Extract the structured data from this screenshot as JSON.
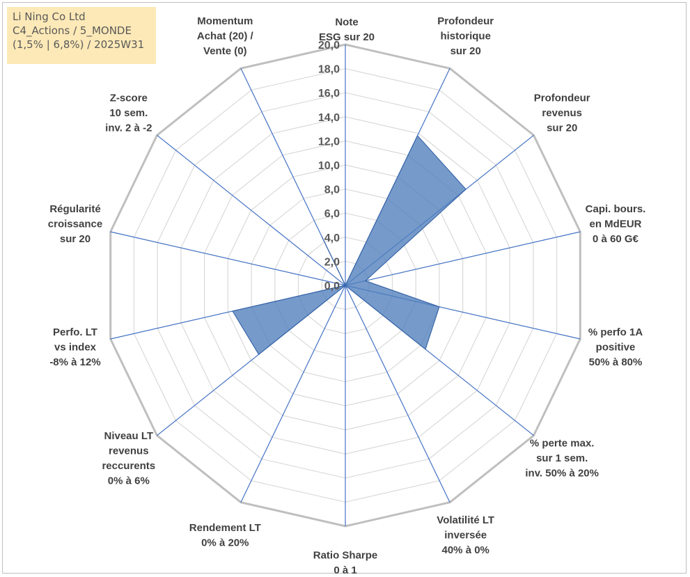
{
  "info": {
    "line1": "Li Ning Co Ltd",
    "line2": "C4_Actions / 5_MONDE",
    "line3": "(1,5% | 6,8%) / 2025W31"
  },
  "chart_data": {
    "type": "radar",
    "rlim": [
      0,
      20
    ],
    "tick_labels": [
      "0,0",
      "2,0",
      "4,0",
      "6,0",
      "8,0",
      "10,0",
      "12,0",
      "14,0",
      "16,0",
      "18,0",
      "20,0"
    ],
    "grid": true,
    "axes": [
      [
        "Note",
        "ESG sur 20"
      ],
      [
        "Profondeur",
        "historique",
        "sur 20"
      ],
      [
        "Profondeur",
        "revenus",
        "sur 20"
      ],
      [
        "Capi. bours.",
        "en MdEUR",
        "0 à 60 G€"
      ],
      [
        "% perfo 1A",
        "positive",
        "50% à 80%"
      ],
      [
        "% perte max.",
        "sur 1 sem.",
        "inv. 50% à 20%"
      ],
      [
        "Volatilité LT",
        "inversée",
        "40% à 0%"
      ],
      [
        "Ratio Sharpe",
        "0 à 1"
      ],
      [
        "Rendement LT",
        "0% à 20%"
      ],
      [
        "Niveau LT",
        "revenus",
        "reccurents",
        "0% à 6%"
      ],
      [
        "Perfo. LT",
        "vs index",
        "-8% à 12%"
      ],
      [
        "Régularité",
        "croissance",
        "sur 20"
      ],
      [
        "Z-score",
        "10 sem.",
        "inv. 2 à -2"
      ],
      [
        "Momentum",
        "Achat (20) /",
        "Vente (0)"
      ]
    ],
    "series": [
      {
        "values": [
          0,
          13.8,
          12.8,
          1.7,
          8.0,
          8.5,
          0,
          0,
          0,
          9.2,
          9.6,
          0,
          0,
          4.5
        ],
        "color": "#4f7fbd"
      }
    ]
  }
}
